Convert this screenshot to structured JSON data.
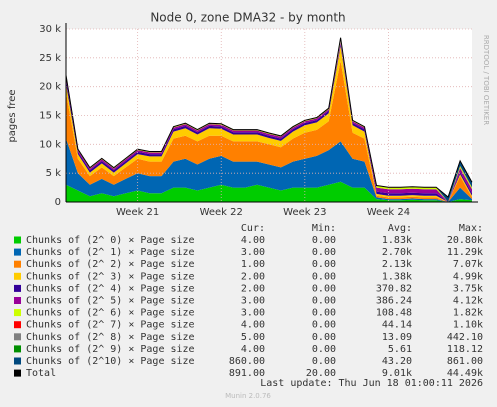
{
  "chart_data": {
    "type": "stacked_area",
    "title": "Node 0, zone DMA32 - by month",
    "ylabel": "pages free",
    "side_note": "RRDTOOL / TOBI OETIKER",
    "footer": "Last update: Thu Jun 18 01:00:11 2026",
    "version": "Munin 2.0.76",
    "categories": [
      null,
      null,
      null,
      null,
      null,
      null,
      "Week 21",
      null,
      null,
      null,
      null,
      null,
      null,
      "Week 22",
      null,
      null,
      null,
      null,
      null,
      null,
      "Week 23",
      null,
      null,
      null,
      null,
      null,
      null,
      "Week 24",
      null,
      null,
      null,
      null,
      null,
      null,
      null
    ],
    "ylim": [
      0,
      30000
    ],
    "yticks": [
      0,
      {
        "value": 5000,
        "label": "5 k"
      },
      {
        "value": 10000,
        "label": "10 k"
      },
      {
        "value": 15000,
        "label": "15 k"
      },
      {
        "value": 20000,
        "label": "20 k"
      },
      {
        "value": 25000,
        "label": "25 k"
      },
      {
        "value": 30000,
        "label": "30 k"
      }
    ],
    "grid": true,
    "stats_columns": [
      "Cur:",
      "Min:",
      "Avg:",
      "Max:"
    ],
    "series": [
      {
        "name": "Chunks of (2^ 0) × Page size",
        "color": "#00cc00",
        "stats": [
          "4.00",
          "0.00",
          "1.83k",
          "20.80k"
        ],
        "values": [
          3000,
          2000,
          1000,
          1500,
          1000,
          1500,
          2000,
          1500,
          1500,
          2500,
          2500,
          2000,
          2500,
          3000,
          2500,
          2500,
          3000,
          2500,
          2000,
          2500,
          2500,
          2500,
          3000,
          3500,
          2500,
          2500,
          500,
          300,
          300,
          400,
          300,
          300,
          0,
          500,
          300
        ]
      },
      {
        "name": "Chunks of (2^ 1) × Page size",
        "color": "#0066b3",
        "stats": [
          "3.00",
          "0.00",
          "2.70k",
          "11.29k"
        ],
        "values": [
          8000,
          3000,
          2000,
          2500,
          2000,
          2500,
          3000,
          3000,
          3000,
          4500,
          5000,
          4500,
          5000,
          5000,
          4500,
          4500,
          4000,
          4000,
          4000,
          4500,
          5000,
          5500,
          6000,
          7000,
          5000,
          4500,
          300,
          200,
          200,
          200,
          200,
          200,
          0,
          2000,
          200
        ]
      },
      {
        "name": "Chunks of (2^ 2) × Page size",
        "color": "#ff8000",
        "stats": [
          "1.00",
          "0.00",
          "2.13k",
          "7.07k"
        ],
        "values": [
          8000,
          2500,
          1500,
          2000,
          1500,
          2000,
          2500,
          2500,
          2500,
          4000,
          4000,
          4000,
          4000,
          3500,
          3500,
          3500,
          3500,
          3500,
          3500,
          4000,
          4500,
          4500,
          5000,
          14000,
          4500,
          4000,
          300,
          300,
          300,
          300,
          300,
          300,
          0,
          2000,
          300
        ]
      },
      {
        "name": "Chunks of (2^ 3) × Page size",
        "color": "#ffcc00",
        "stats": [
          "2.00",
          "0.00",
          "1.38k",
          "4.99k"
        ],
        "values": [
          1500,
          800,
          600,
          700,
          600,
          700,
          800,
          900,
          900,
          1200,
          1300,
          1200,
          1300,
          1200,
          1200,
          1200,
          1200,
          1100,
          1100,
          1200,
          1300,
          1300,
          1400,
          2500,
          1300,
          1200,
          300,
          300,
          300,
          300,
          300,
          300,
          0,
          300,
          300
        ]
      },
      {
        "name": "Chunks of (2^ 4) × Page size",
        "color": "#330099",
        "stats": [
          "2.00",
          "0.00",
          "370.82",
          "3.75k"
        ],
        "values": [
          800,
          400,
          400,
          400,
          400,
          400,
          400,
          400,
          400,
          400,
          400,
          400,
          400,
          400,
          400,
          400,
          400,
          400,
          400,
          400,
          400,
          400,
          400,
          400,
          400,
          400,
          400,
          400,
          400,
          400,
          400,
          400,
          0,
          400,
          400
        ]
      },
      {
        "name": "Chunks of (2^ 5) × Page size",
        "color": "#990099",
        "stats": [
          "3.00",
          "0.00",
          "386.24",
          "4.12k"
        ],
        "values": [
          500,
          300,
          300,
          300,
          300,
          300,
          300,
          300,
          300,
          300,
          300,
          300,
          300,
          300,
          300,
          300,
          300,
          300,
          300,
          300,
          300,
          300,
          300,
          300,
          300,
          300,
          700,
          700,
          700,
          700,
          700,
          700,
          0,
          700,
          700
        ]
      },
      {
        "name": "Chunks of (2^ 6) × Page size",
        "color": "#ccff00",
        "stats": [
          "3.00",
          "0.00",
          "108.48",
          "1.82k"
        ],
        "values": [
          100,
          100,
          100,
          100,
          100,
          100,
          100,
          100,
          100,
          100,
          100,
          100,
          100,
          100,
          100,
          100,
          100,
          100,
          100,
          100,
          100,
          100,
          100,
          100,
          100,
          100,
          300,
          300,
          300,
          300,
          300,
          300,
          0,
          300,
          300
        ]
      },
      {
        "name": "Chunks of (2^ 7) × Page size",
        "color": "#ff0000",
        "stats": [
          "4.00",
          "0.00",
          "44.14",
          "1.10k"
        ],
        "values": [
          40,
          40,
          40,
          40,
          40,
          40,
          40,
          40,
          40,
          40,
          40,
          40,
          40,
          40,
          40,
          40,
          40,
          40,
          40,
          40,
          40,
          40,
          40,
          40,
          40,
          40,
          40,
          40,
          40,
          40,
          40,
          40,
          0,
          40,
          40
        ]
      },
      {
        "name": "Chunks of (2^ 8) × Page size",
        "color": "#808080",
        "stats": [
          "5.00",
          "0.00",
          "13.09",
          "442.10"
        ],
        "values": [
          15,
          15,
          15,
          15,
          15,
          15,
          15,
          15,
          15,
          15,
          15,
          15,
          15,
          15,
          15,
          15,
          15,
          15,
          15,
          15,
          15,
          15,
          15,
          15,
          15,
          15,
          15,
          15,
          15,
          15,
          15,
          15,
          0,
          15,
          15
        ]
      },
      {
        "name": "Chunks of (2^ 9) × Page size",
        "color": "#008f00",
        "stats": [
          "4.00",
          "0.00",
          "5.61",
          "118.12"
        ],
        "values": [
          5,
          5,
          5,
          5,
          5,
          5,
          5,
          5,
          5,
          5,
          5,
          5,
          5,
          5,
          5,
          5,
          5,
          5,
          5,
          5,
          5,
          5,
          5,
          5,
          5,
          5,
          5,
          5,
          5,
          5,
          5,
          5,
          0,
          5,
          5
        ]
      },
      {
        "name": "Chunks of (2^10) × Page size",
        "color": "#00487d",
        "stats": [
          "860.00",
          "0.00",
          "43.20",
          "861.00"
        ],
        "values": [
          0,
          0,
          0,
          0,
          0,
          0,
          0,
          0,
          0,
          0,
          0,
          0,
          0,
          0,
          0,
          0,
          0,
          0,
          0,
          0,
          0,
          0,
          0,
          0,
          0,
          0,
          0,
          0,
          0,
          0,
          0,
          0,
          860,
          860,
          860
        ]
      },
      {
        "name": "Total",
        "color": "#000000",
        "line": true,
        "stats": [
          "891.00",
          "20.00",
          "9.01k",
          "44.49k"
        ],
        "values": [
          22000,
          9160,
          5960,
          7560,
          5960,
          7560,
          9160,
          8760,
          8760,
          13060,
          13660,
          12560,
          13660,
          13560,
          12560,
          12560,
          12560,
          11960,
          11460,
          13060,
          14160,
          14660,
          16260,
          28500,
          14160,
          13060,
          2860,
          2560,
          2560,
          2660,
          2560,
          2560,
          860,
          7120,
          3420
        ]
      }
    ]
  }
}
